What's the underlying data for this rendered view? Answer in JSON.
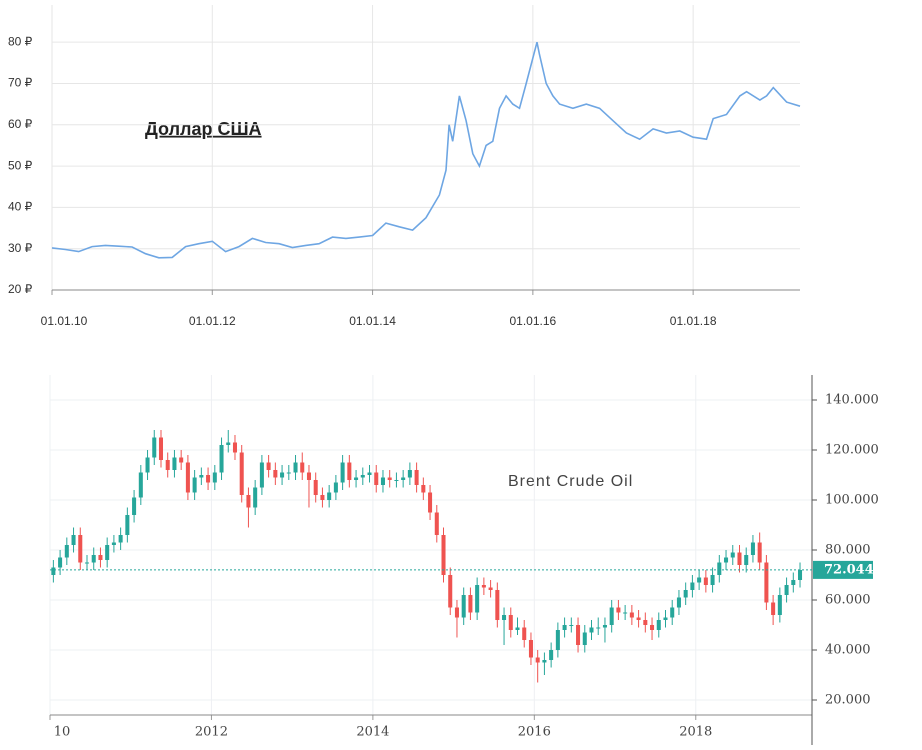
{
  "chart_data": [
    {
      "type": "line",
      "annotation": "Доллар США",
      "x": [
        "01.01.10",
        "01.03.10",
        "01.05.10",
        "01.07.10",
        "01.09.10",
        "01.11.10",
        "01.01.11",
        "01.03.11",
        "01.05.11",
        "01.07.11",
        "01.09.11",
        "01.11.11",
        "01.01.12",
        "01.03.12",
        "01.05.12",
        "01.07.12",
        "01.09.12",
        "01.11.12",
        "01.01.13",
        "01.03.13",
        "01.05.13",
        "01.07.13",
        "01.09.13",
        "01.11.13",
        "01.01.14",
        "01.03.14",
        "01.05.14",
        "01.07.14",
        "01.09.14",
        "01.11.14",
        "01.12.14",
        "15.12.14",
        "01.01.15",
        "01.02.15",
        "01.03.15",
        "01.04.15",
        "01.05.15",
        "01.06.15",
        "01.07.15",
        "01.08.15",
        "01.09.15",
        "01.10.15",
        "01.11.15",
        "01.12.15",
        "20.01.16",
        "01.02.16",
        "01.03.16",
        "01.04.16",
        "01.05.16",
        "01.07.16",
        "01.09.16",
        "01.11.16",
        "01.01.17",
        "01.03.17",
        "01.05.17",
        "01.07.17",
        "01.09.17",
        "01.11.17",
        "01.01.18",
        "01.03.18",
        "01.04.18",
        "01.06.18",
        "01.08.18",
        "01.09.18",
        "01.11.18",
        "01.12.18",
        "01.01.19",
        "01.03.19",
        "01.05.19"
      ],
      "values": [
        30.2,
        29.8,
        29.3,
        30.5,
        30.8,
        30.6,
        30.4,
        28.8,
        27.8,
        27.9,
        30.5,
        31.2,
        31.8,
        29.3,
        30.5,
        32.5,
        31.5,
        31.2,
        30.3,
        30.8,
        31.2,
        32.8,
        32.5,
        32.8,
        33.2,
        36.2,
        35.3,
        34.5,
        37.5,
        43,
        49,
        60,
        56,
        67,
        61,
        53,
        50,
        55,
        56,
        64,
        67,
        65,
        64,
        70,
        80,
        77,
        70,
        67,
        65,
        64,
        65,
        64,
        61,
        58,
        56.5,
        59,
        58,
        58.5,
        57,
        56.5,
        61.5,
        62.5,
        67,
        68,
        66,
        67,
        69,
        65.5,
        64.5
      ],
      "color": "#6ea6e3",
      "xlim": [
        "01.01.10",
        "01.05.19"
      ],
      "xticks": [
        "01.01.10",
        "01.01.12",
        "01.01.14",
        "01.01.16",
        "01.01.18"
      ],
      "ylim": [
        20,
        89
      ],
      "yticks": [
        {
          "value": 20,
          "label": "20 ₽"
        },
        {
          "value": 30,
          "label": "30 ₽"
        },
        {
          "value": 40,
          "label": "40 ₽"
        },
        {
          "value": 50,
          "label": "50 ₽"
        },
        {
          "value": 60,
          "label": "60 ₽"
        },
        {
          "value": 70,
          "label": "70 ₽"
        },
        {
          "value": 80,
          "label": "80 ₽"
        }
      ],
      "grid": true
    },
    {
      "type": "candlestick",
      "annotation": "Brent Crude Oil",
      "x": [
        "2010-01",
        "2010-02",
        "2010-03",
        "2010-04",
        "2010-05",
        "2010-06",
        "2010-07",
        "2010-08",
        "2010-09",
        "2010-10",
        "2010-11",
        "2010-12",
        "2011-01",
        "2011-02",
        "2011-03",
        "2011-04",
        "2011-05",
        "2011-06",
        "2011-07",
        "2011-08",
        "2011-09",
        "2011-10",
        "2011-11",
        "2011-12",
        "2012-01",
        "2012-02",
        "2012-03",
        "2012-04",
        "2012-05",
        "2012-06",
        "2012-07",
        "2012-08",
        "2012-09",
        "2012-10",
        "2012-11",
        "2012-12",
        "2013-01",
        "2013-02",
        "2013-03",
        "2013-04",
        "2013-05",
        "2013-06",
        "2013-07",
        "2013-08",
        "2013-09",
        "2013-10",
        "2013-11",
        "2013-12",
        "2014-01",
        "2014-02",
        "2014-03",
        "2014-04",
        "2014-05",
        "2014-06",
        "2014-07",
        "2014-08",
        "2014-09",
        "2014-10",
        "2014-11",
        "2014-12",
        "2015-01",
        "2015-02",
        "2015-03",
        "2015-04",
        "2015-05",
        "2015-06",
        "2015-07",
        "2015-08",
        "2015-09",
        "2015-10",
        "2015-11",
        "2015-12",
        "2016-01",
        "2016-02",
        "2016-03",
        "2016-04",
        "2016-05",
        "2016-06",
        "2016-07",
        "2016-08",
        "2016-09",
        "2016-10",
        "2016-11",
        "2016-12",
        "2017-01",
        "2017-02",
        "2017-03",
        "2017-04",
        "2017-05",
        "2017-06",
        "2017-07",
        "2017-08",
        "2017-09",
        "2017-10",
        "2017-11",
        "2017-12",
        "2018-01",
        "2018-02",
        "2018-03",
        "2018-04",
        "2018-05",
        "2018-06",
        "2018-07",
        "2018-08",
        "2018-09",
        "2018-10",
        "2018-11",
        "2018-12",
        "2019-01",
        "2019-02",
        "2019-03",
        "2019-04"
      ],
      "open": [
        70,
        73,
        77,
        82,
        86,
        75,
        75,
        78,
        76,
        82,
        83,
        86,
        94,
        101,
        111,
        117,
        125,
        116,
        112,
        117,
        115,
        103,
        109,
        110,
        107,
        111,
        122,
        123,
        119,
        102,
        97,
        105,
        115,
        112,
        109,
        111,
        111,
        115,
        111,
        108,
        102,
        100,
        103,
        107,
        115,
        108,
        109,
        110,
        111,
        106,
        109,
        108,
        108,
        109,
        112,
        106,
        103,
        95,
        86,
        70,
        57,
        53,
        62,
        55,
        66,
        65,
        64,
        52,
        54,
        48,
        49,
        44,
        37,
        35,
        36,
        40,
        48,
        50,
        50,
        42,
        47,
        49,
        49,
        50,
        57,
        55,
        55,
        53,
        52,
        50,
        48,
        52,
        53,
        57,
        61,
        64,
        67,
        69,
        66,
        70,
        75,
        77,
        79,
        74,
        78,
        83,
        75,
        59,
        54,
        62,
        66,
        68
      ],
      "high": [
        76,
        80,
        85,
        89,
        89,
        78,
        81,
        81,
        85,
        86,
        89,
        97,
        104,
        114,
        120,
        128,
        128,
        119,
        120,
        120,
        118,
        112,
        113,
        113,
        114,
        125,
        128,
        126,
        122,
        105,
        108,
        118,
        118,
        115,
        114,
        114,
        118,
        119,
        114,
        111,
        105,
        106,
        110,
        118,
        118,
        112,
        113,
        114,
        114,
        112,
        112,
        111,
        112,
        115,
        115,
        109,
        106,
        98,
        89,
        73,
        60,
        65,
        65,
        69,
        69,
        68,
        67,
        57,
        57,
        53,
        52,
        47,
        40,
        39,
        43,
        51,
        53,
        53,
        53,
        50,
        52,
        53,
        53,
        60,
        60,
        58,
        58,
        56,
        55,
        53,
        55,
        56,
        60,
        64,
        67,
        70,
        72,
        72,
        73,
        78,
        80,
        82,
        82,
        81,
        86,
        87,
        78,
        62,
        65,
        69,
        71,
        75
      ],
      "low": [
        67,
        70,
        74,
        79,
        72,
        72,
        72,
        73,
        73,
        79,
        80,
        83,
        91,
        98,
        108,
        114,
        113,
        109,
        109,
        112,
        100,
        100,
        106,
        104,
        104,
        108,
        119,
        116,
        99,
        89,
        94,
        102,
        109,
        106,
        106,
        108,
        108,
        108,
        97,
        99,
        97,
        97,
        100,
        104,
        105,
        105,
        106,
        107,
        103,
        103,
        105,
        105,
        105,
        106,
        103,
        100,
        92,
        83,
        67,
        54,
        45,
        50,
        52,
        52,
        62,
        61,
        49,
        42,
        45,
        46,
        41,
        34,
        27,
        30,
        33,
        37,
        45,
        47,
        39,
        39,
        44,
        46,
        43,
        47,
        52,
        52,
        50,
        49,
        47,
        44,
        45,
        49,
        50,
        54,
        58,
        61,
        64,
        63,
        63,
        67,
        72,
        74,
        71,
        71,
        75,
        72,
        56,
        50,
        51,
        59,
        63,
        65
      ],
      "close": [
        73,
        77,
        82,
        86,
        75,
        75,
        78,
        76,
        82,
        83,
        86,
        94,
        101,
        111,
        117,
        125,
        116,
        112,
        117,
        115,
        103,
        109,
        110,
        107,
        111,
        122,
        123,
        119,
        102,
        97,
        105,
        115,
        112,
        109,
        111,
        111,
        115,
        111,
        108,
        102,
        100,
        103,
        107,
        115,
        108,
        109,
        110,
        111,
        106,
        109,
        108,
        108,
        109,
        112,
        106,
        103,
        95,
        86,
        70,
        57,
        53,
        62,
        55,
        66,
        65,
        64,
        52,
        54,
        48,
        49,
        44,
        37,
        35,
        36,
        40,
        48,
        50,
        50,
        42,
        47,
        49,
        49,
        50,
        57,
        55,
        55,
        53,
        52,
        50,
        48,
        52,
        53,
        57,
        61,
        64,
        67,
        69,
        66,
        70,
        75,
        77,
        79,
        74,
        78,
        83,
        75,
        59,
        54,
        62,
        66,
        68,
        72
      ],
      "up_color": "#26a69a",
      "down_color": "#ef5350",
      "xlim": [
        2010,
        2019.44
      ],
      "xticks": [
        {
          "value": 2010,
          "label": "10"
        },
        2012,
        2014,
        2016,
        2018
      ],
      "ylim": [
        14,
        150
      ],
      "yticks": [
        {
          "value": 20,
          "label": "20.000"
        },
        {
          "value": 40,
          "label": "40.000"
        },
        {
          "value": 60,
          "label": "60.000"
        },
        {
          "value": 80,
          "label": "80.000"
        },
        {
          "value": 100,
          "label": "100.000"
        },
        {
          "value": 120,
          "label": "120.000"
        },
        {
          "value": 140,
          "label": "140.000"
        }
      ],
      "last_price": {
        "value": 72.044,
        "label": "72.044"
      },
      "grid": true
    }
  ]
}
